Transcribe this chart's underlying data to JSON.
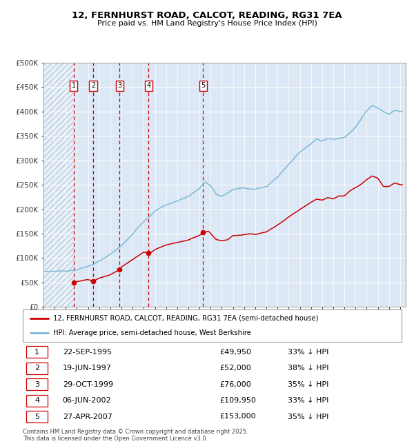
{
  "title_line1": "12, FERNHURST ROAD, CALCOT, READING, RG31 7EA",
  "title_line2": "Price paid vs. HM Land Registry's House Price Index (HPI)",
  "ylim": [
    0,
    500000
  ],
  "yticks": [
    0,
    50000,
    100000,
    150000,
    200000,
    250000,
    300000,
    350000,
    400000,
    450000,
    500000
  ],
  "ytick_labels": [
    "£0",
    "£50K",
    "£100K",
    "£150K",
    "£200K",
    "£250K",
    "£300K",
    "£350K",
    "£400K",
    "£450K",
    "£500K"
  ],
  "xlim": [
    1993,
    2025.5
  ],
  "hpi_color": "#7bb8d8",
  "price_color": "#cc0000",
  "bg_color": "#dce8f5",
  "hatch_color": "#b8c8dc",
  "grid_color": "#ffffff",
  "vline_color": "#cc0000",
  "purchases": [
    {
      "label": "1",
      "date": "22-SEP-1995",
      "year": 1995.72,
      "price": 49950,
      "hpi_pct": "33% ↓ HPI"
    },
    {
      "label": "2",
      "date": "19-JUN-1997",
      "year": 1997.46,
      "price": 52000,
      "hpi_pct": "38% ↓ HPI"
    },
    {
      "label": "3",
      "date": "29-OCT-1999",
      "year": 1999.83,
      "price": 76000,
      "hpi_pct": "35% ↓ HPI"
    },
    {
      "label": "4",
      "date": "06-JUN-2002",
      "year": 2002.43,
      "price": 109950,
      "hpi_pct": "33% ↓ HPI"
    },
    {
      "label": "5",
      "date": "27-APR-2007",
      "year": 2007.32,
      "price": 153000,
      "hpi_pct": "35% ↓ HPI"
    }
  ],
  "legend_label_red": "12, FERNHURST ROAD, CALCOT, READING, RG31 7EA (semi-detached house)",
  "legend_label_blue": "HPI: Average price, semi-detached house, West Berkshire",
  "footer_line1": "Contains HM Land Registry data © Crown copyright and database right 2025.",
  "footer_line2": "This data is licensed under the Open Government Licence v3.0.",
  "hpi_keypoints": [
    [
      1993.0,
      72000
    ],
    [
      1994.0,
      73000
    ],
    [
      1995.0,
      74000
    ],
    [
      1996.0,
      77000
    ],
    [
      1997.0,
      84000
    ],
    [
      1998.0,
      95000
    ],
    [
      1999.0,
      108000
    ],
    [
      2000.0,
      125000
    ],
    [
      2001.0,
      148000
    ],
    [
      2002.0,
      175000
    ],
    [
      2003.0,
      198000
    ],
    [
      2004.0,
      210000
    ],
    [
      2005.0,
      218000
    ],
    [
      2006.0,
      228000
    ],
    [
      2007.0,
      245000
    ],
    [
      2007.5,
      258000
    ],
    [
      2008.0,
      250000
    ],
    [
      2008.5,
      232000
    ],
    [
      2009.0,
      228000
    ],
    [
      2009.5,
      235000
    ],
    [
      2010.0,
      242000
    ],
    [
      2011.0,
      245000
    ],
    [
      2012.0,
      243000
    ],
    [
      2013.0,
      248000
    ],
    [
      2014.0,
      268000
    ],
    [
      2015.0,
      295000
    ],
    [
      2016.0,
      320000
    ],
    [
      2017.0,
      338000
    ],
    [
      2017.5,
      348000
    ],
    [
      2018.0,
      345000
    ],
    [
      2018.5,
      350000
    ],
    [
      2019.0,
      348000
    ],
    [
      2020.0,
      352000
    ],
    [
      2021.0,
      375000
    ],
    [
      2022.0,
      408000
    ],
    [
      2022.5,
      420000
    ],
    [
      2023.0,
      415000
    ],
    [
      2023.5,
      408000
    ],
    [
      2024.0,
      402000
    ],
    [
      2024.5,
      410000
    ],
    [
      2025.0,
      408000
    ]
  ],
  "price_keypoints": [
    [
      1995.72,
      49950
    ],
    [
      1996.0,
      51000
    ],
    [
      1997.0,
      55000
    ],
    [
      1997.46,
      52000
    ],
    [
      1997.5,
      52000
    ],
    [
      1998.0,
      58000
    ],
    [
      1999.0,
      65000
    ],
    [
      1999.83,
      76000
    ],
    [
      2000.0,
      82000
    ],
    [
      2001.0,
      97000
    ],
    [
      2002.0,
      113000
    ],
    [
      2002.43,
      109950
    ],
    [
      2002.5,
      110000
    ],
    [
      2003.0,
      118000
    ],
    [
      2004.0,
      128000
    ],
    [
      2005.0,
      133000
    ],
    [
      2006.0,
      138000
    ],
    [
      2007.0,
      148000
    ],
    [
      2007.32,
      153000
    ],
    [
      2007.5,
      155000
    ],
    [
      2007.8,
      157000
    ],
    [
      2008.0,
      152000
    ],
    [
      2008.5,
      140000
    ],
    [
      2009.0,
      138000
    ],
    [
      2009.5,
      140000
    ],
    [
      2010.0,
      148000
    ],
    [
      2011.0,
      150000
    ],
    [
      2011.5,
      152000
    ],
    [
      2012.0,
      150000
    ],
    [
      2013.0,
      155000
    ],
    [
      2014.0,
      168000
    ],
    [
      2015.0,
      185000
    ],
    [
      2016.0,
      200000
    ],
    [
      2017.0,
      215000
    ],
    [
      2017.5,
      222000
    ],
    [
      2018.0,
      220000
    ],
    [
      2018.5,
      225000
    ],
    [
      2019.0,
      222000
    ],
    [
      2019.5,
      228000
    ],
    [
      2020.0,
      228000
    ],
    [
      2020.5,
      238000
    ],
    [
      2021.0,
      245000
    ],
    [
      2021.5,
      252000
    ],
    [
      2022.0,
      262000
    ],
    [
      2022.5,
      270000
    ],
    [
      2023.0,
      265000
    ],
    [
      2023.5,
      248000
    ],
    [
      2024.0,
      248000
    ],
    [
      2024.5,
      255000
    ],
    [
      2025.0,
      252000
    ]
  ]
}
